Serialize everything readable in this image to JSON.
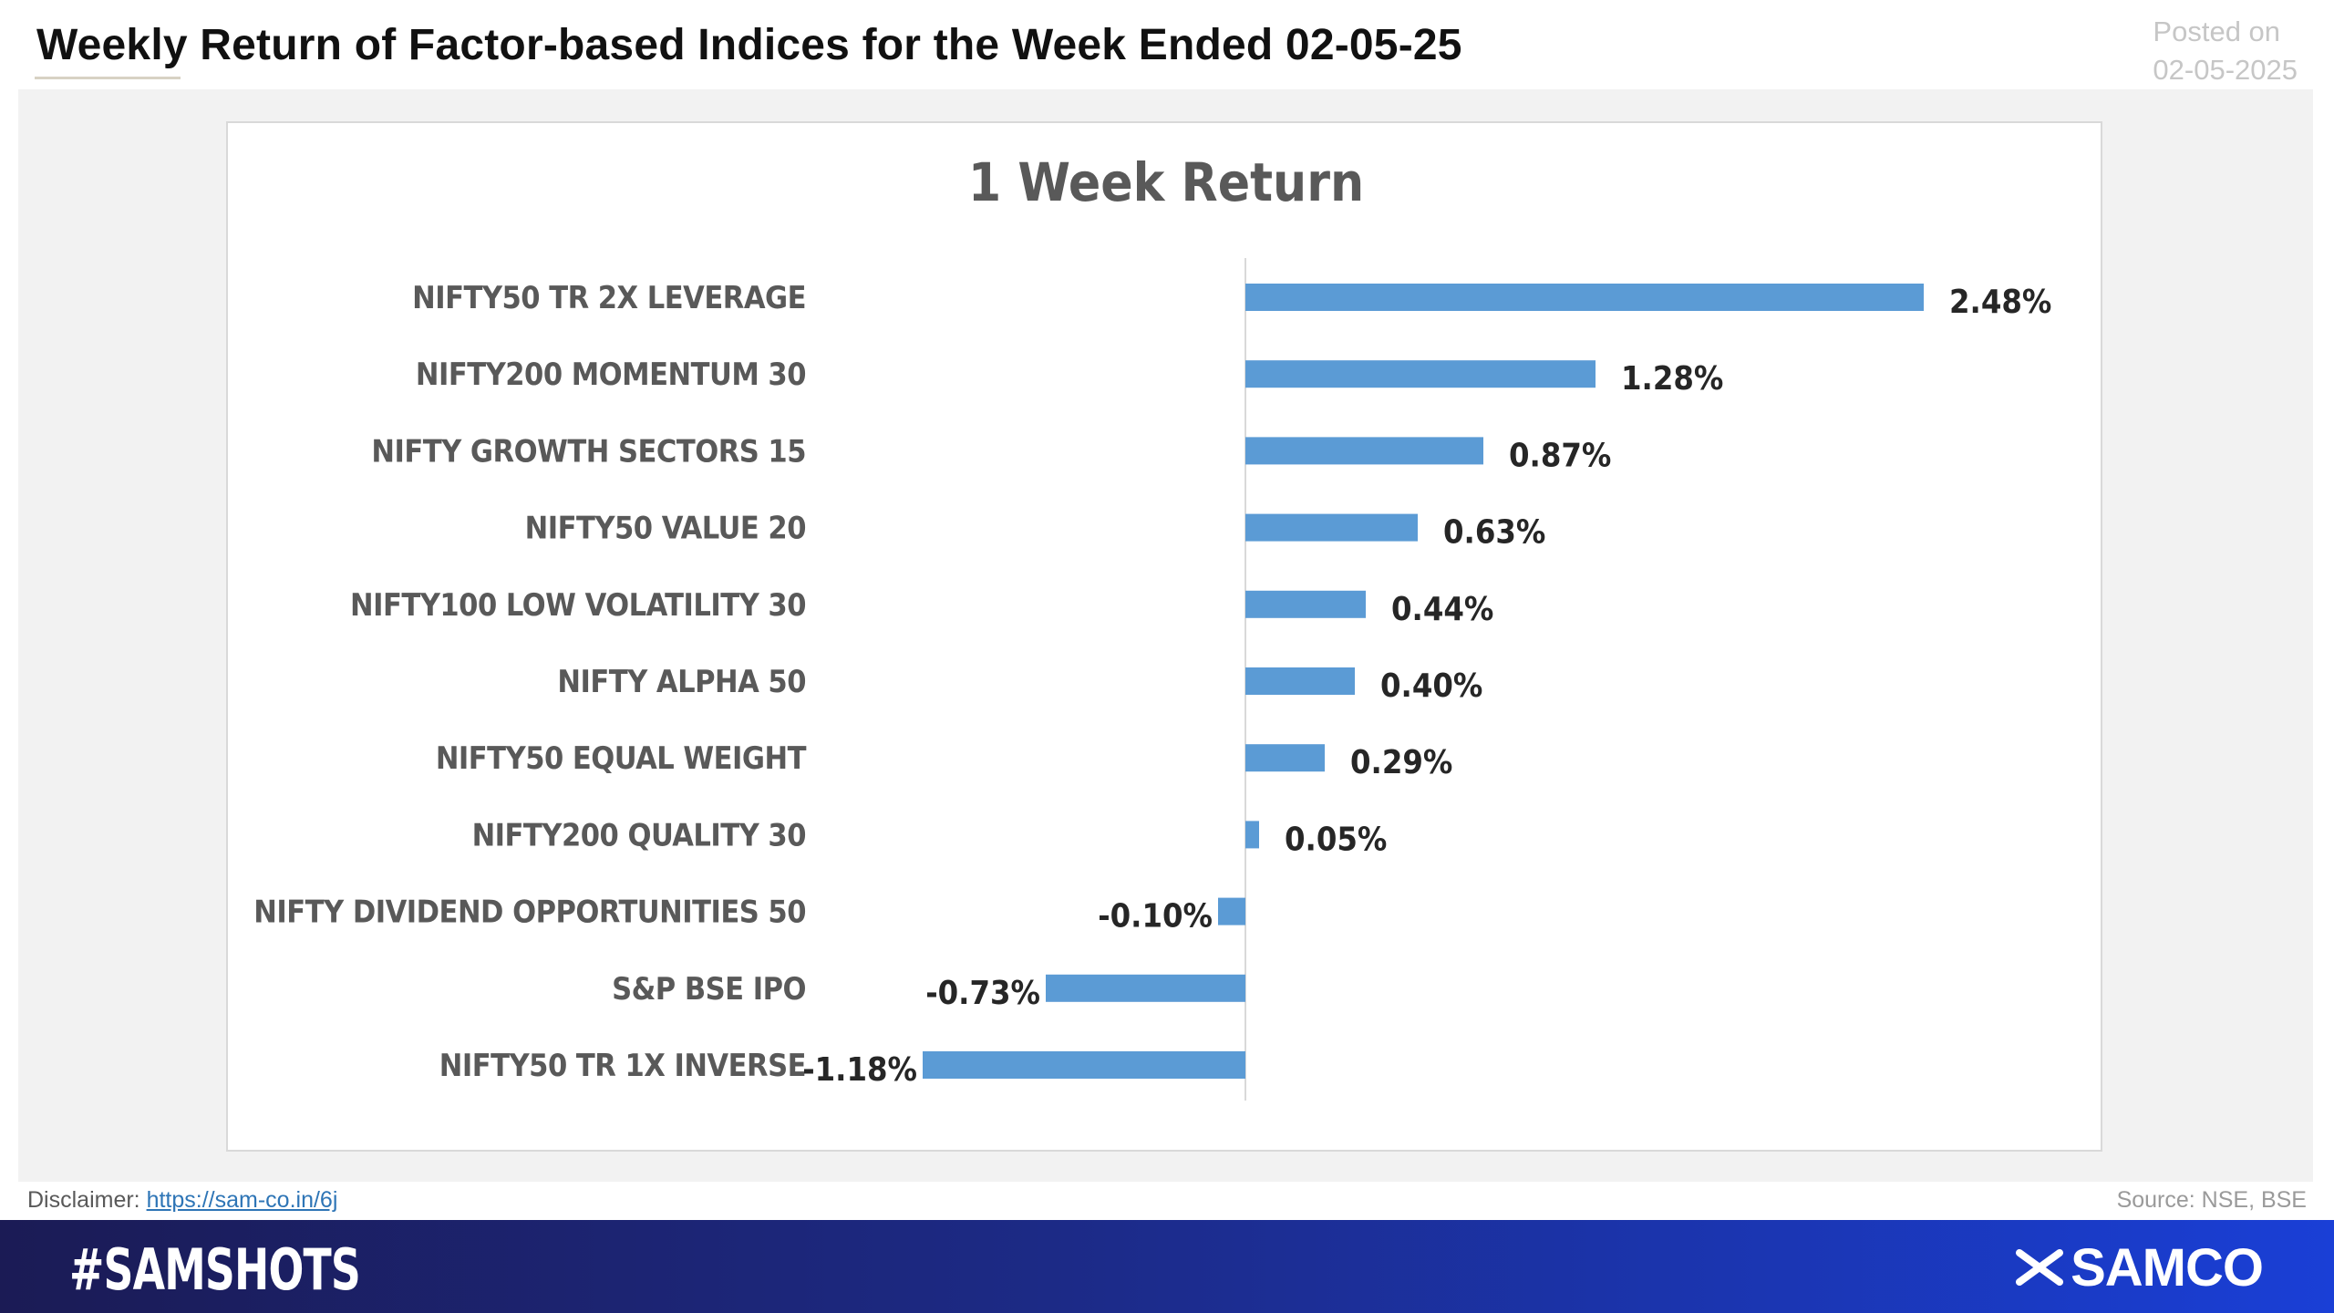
{
  "header": {
    "title": "Weekly Return of Factor-based Indices for the Week Ended 02-05-25",
    "posted_label": "Posted on",
    "posted_date": "02-05-2025"
  },
  "chart_data": {
    "type": "bar",
    "orientation": "horizontal",
    "title": "1 Week Return",
    "xlabel": "",
    "ylabel": "",
    "categories": [
      "NIFTY50 TR 2X LEVERAGE",
      "NIFTY200 MOMENTUM 30",
      "NIFTY GROWTH SECTORS 15",
      "NIFTY50 VALUE 20",
      "NIFTY100 LOW VOLATILITY 30",
      "NIFTY ALPHA 50",
      "NIFTY50 EQUAL WEIGHT",
      "NIFTY200 QUALITY 30",
      "NIFTY DIVIDEND OPPORTUNITIES 50",
      "S&P BSE IPO",
      "NIFTY50 TR 1X INVERSE"
    ],
    "values": [
      2.48,
      1.28,
      0.87,
      0.63,
      0.44,
      0.4,
      0.29,
      0.05,
      -0.1,
      -0.73,
      -1.18
    ],
    "value_labels": [
      "2.48%",
      "1.28%",
      "0.87%",
      "0.63%",
      "0.44%",
      "0.40%",
      "0.29%",
      "0.05%",
      "-0.10%",
      "-0.73%",
      "-1.18%"
    ],
    "grid": false,
    "legend": "none",
    "bar_color": "#5b9bd5"
  },
  "footer": {
    "disclaimer_label": "Disclaimer:",
    "disclaimer_link": "https://sam-co.in/6j",
    "source": "Source: NSE, BSE",
    "hashtag": "#SAMSHOTS",
    "brand": "SAMCO",
    "brand_color": "#ffffff"
  }
}
